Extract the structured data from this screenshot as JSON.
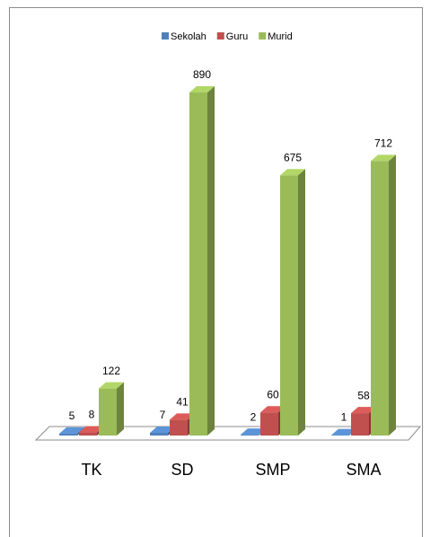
{
  "chart_data": {
    "type": "bar3d",
    "categories": [
      "TK",
      "SD",
      "SMP",
      "SMA"
    ],
    "series": [
      {
        "name": "Sekolah",
        "color": "#4f81bd",
        "values": [
          5,
          7,
          2,
          1
        ]
      },
      {
        "name": "Guru",
        "color": "#c0504d",
        "values": [
          8,
          41,
          60,
          58
        ]
      },
      {
        "name": "Murid",
        "color": "#9bbb59",
        "values": [
          122,
          890,
          675,
          712
        ]
      }
    ],
    "legend": "top"
  }
}
